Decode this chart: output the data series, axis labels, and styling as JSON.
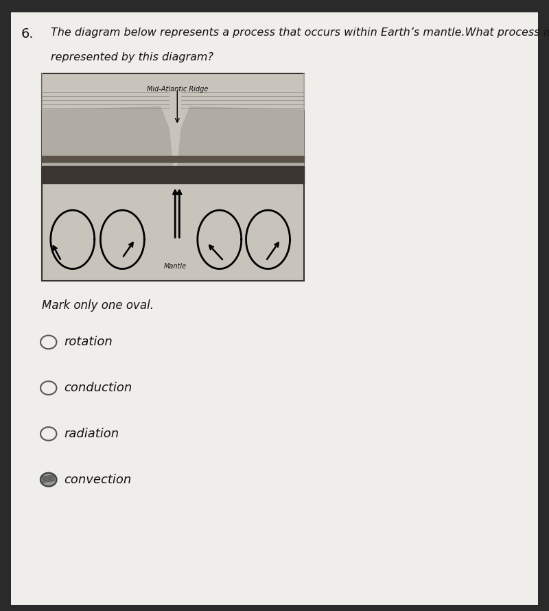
{
  "question_number": "6.",
  "question_text_line1": "The diagram below represents a process that occurs within Earth’s mantle.What process is",
  "question_text_line2": "represented by this diagram?",
  "diagram_label_ridge": "Mid-Atlantic Ridge",
  "diagram_label_mantle": "Mantle",
  "mark_instruction": "Mark only one oval.",
  "options": [
    "rotation",
    "conduction",
    "radiation",
    "convection"
  ],
  "selected_option": "convection",
  "bg_color_dark": "#2a2a2a",
  "bg_color_paper": "#e8e6e0",
  "paper_color": "#f0eeea",
  "diagram_bg": "#d0ccc4",
  "text_color": "#111111",
  "oval_color": "#555555"
}
